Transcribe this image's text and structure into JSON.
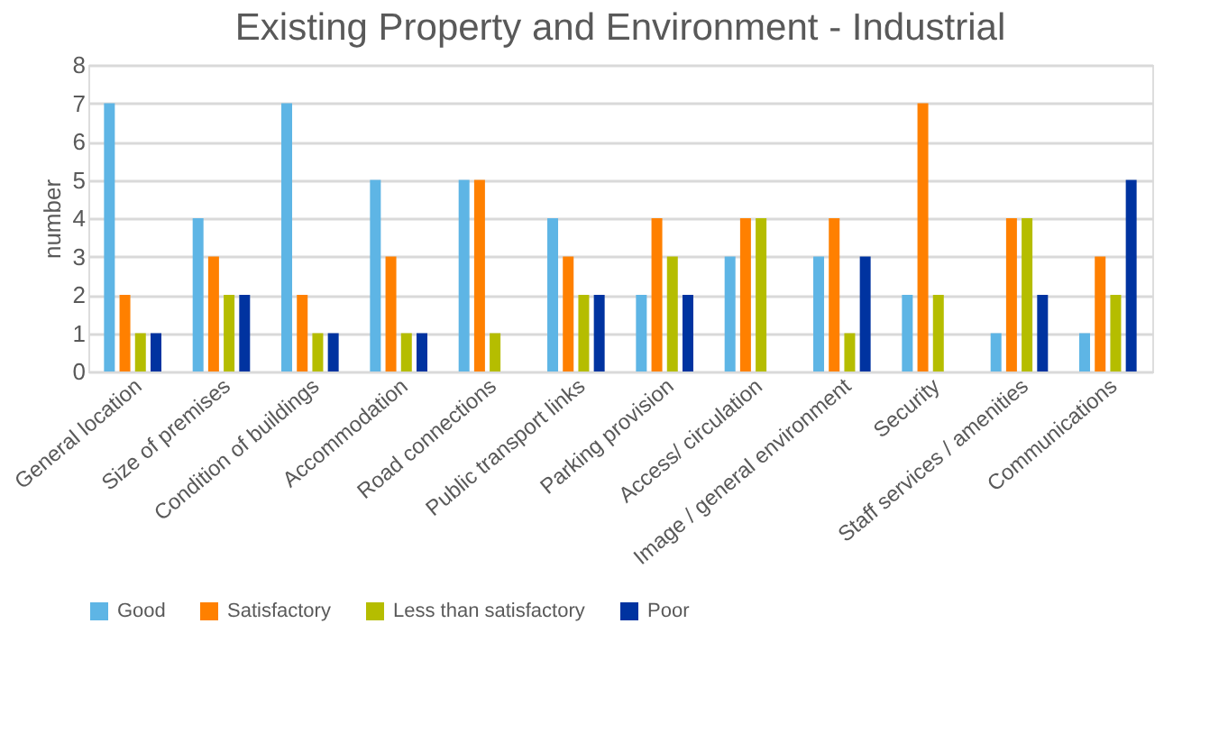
{
  "chart_data": {
    "type": "bar",
    "title": "Existing Property and Environment - Industrial",
    "ylabel": "number",
    "categories": [
      "General location",
      "Size of premises",
      "Condition of buildings",
      "Accommodation",
      "Road connections",
      "Public transport links",
      "Parking provision",
      "Access/ circulation",
      "Image / general environment",
      "Security",
      "Staff services / amenities",
      "Communications"
    ],
    "series": [
      {
        "name": "Good",
        "color": "#5eb5e5",
        "values": [
          7,
          4,
          7,
          5,
          5,
          4,
          2,
          3,
          3,
          2,
          1,
          1
        ]
      },
      {
        "name": "Satisfactory",
        "color": "#ff8000",
        "values": [
          2,
          3,
          2,
          3,
          5,
          3,
          4,
          4,
          4,
          7,
          4,
          3
        ]
      },
      {
        "name": "Less than satisfactory",
        "color": "#b5bd00",
        "values": [
          1,
          2,
          1,
          1,
          1,
          2,
          3,
          4,
          1,
          2,
          4,
          2
        ]
      },
      {
        "name": "Poor",
        "color": "#0033a0",
        "values": [
          1,
          2,
          1,
          1,
          0,
          2,
          2,
          0,
          3,
          0,
          2,
          5
        ]
      }
    ],
    "ylim": [
      0,
      8
    ],
    "yticks": [
      0,
      1,
      2,
      3,
      4,
      5,
      6,
      7,
      8
    ],
    "grid": "y",
    "legend": "bottom"
  }
}
